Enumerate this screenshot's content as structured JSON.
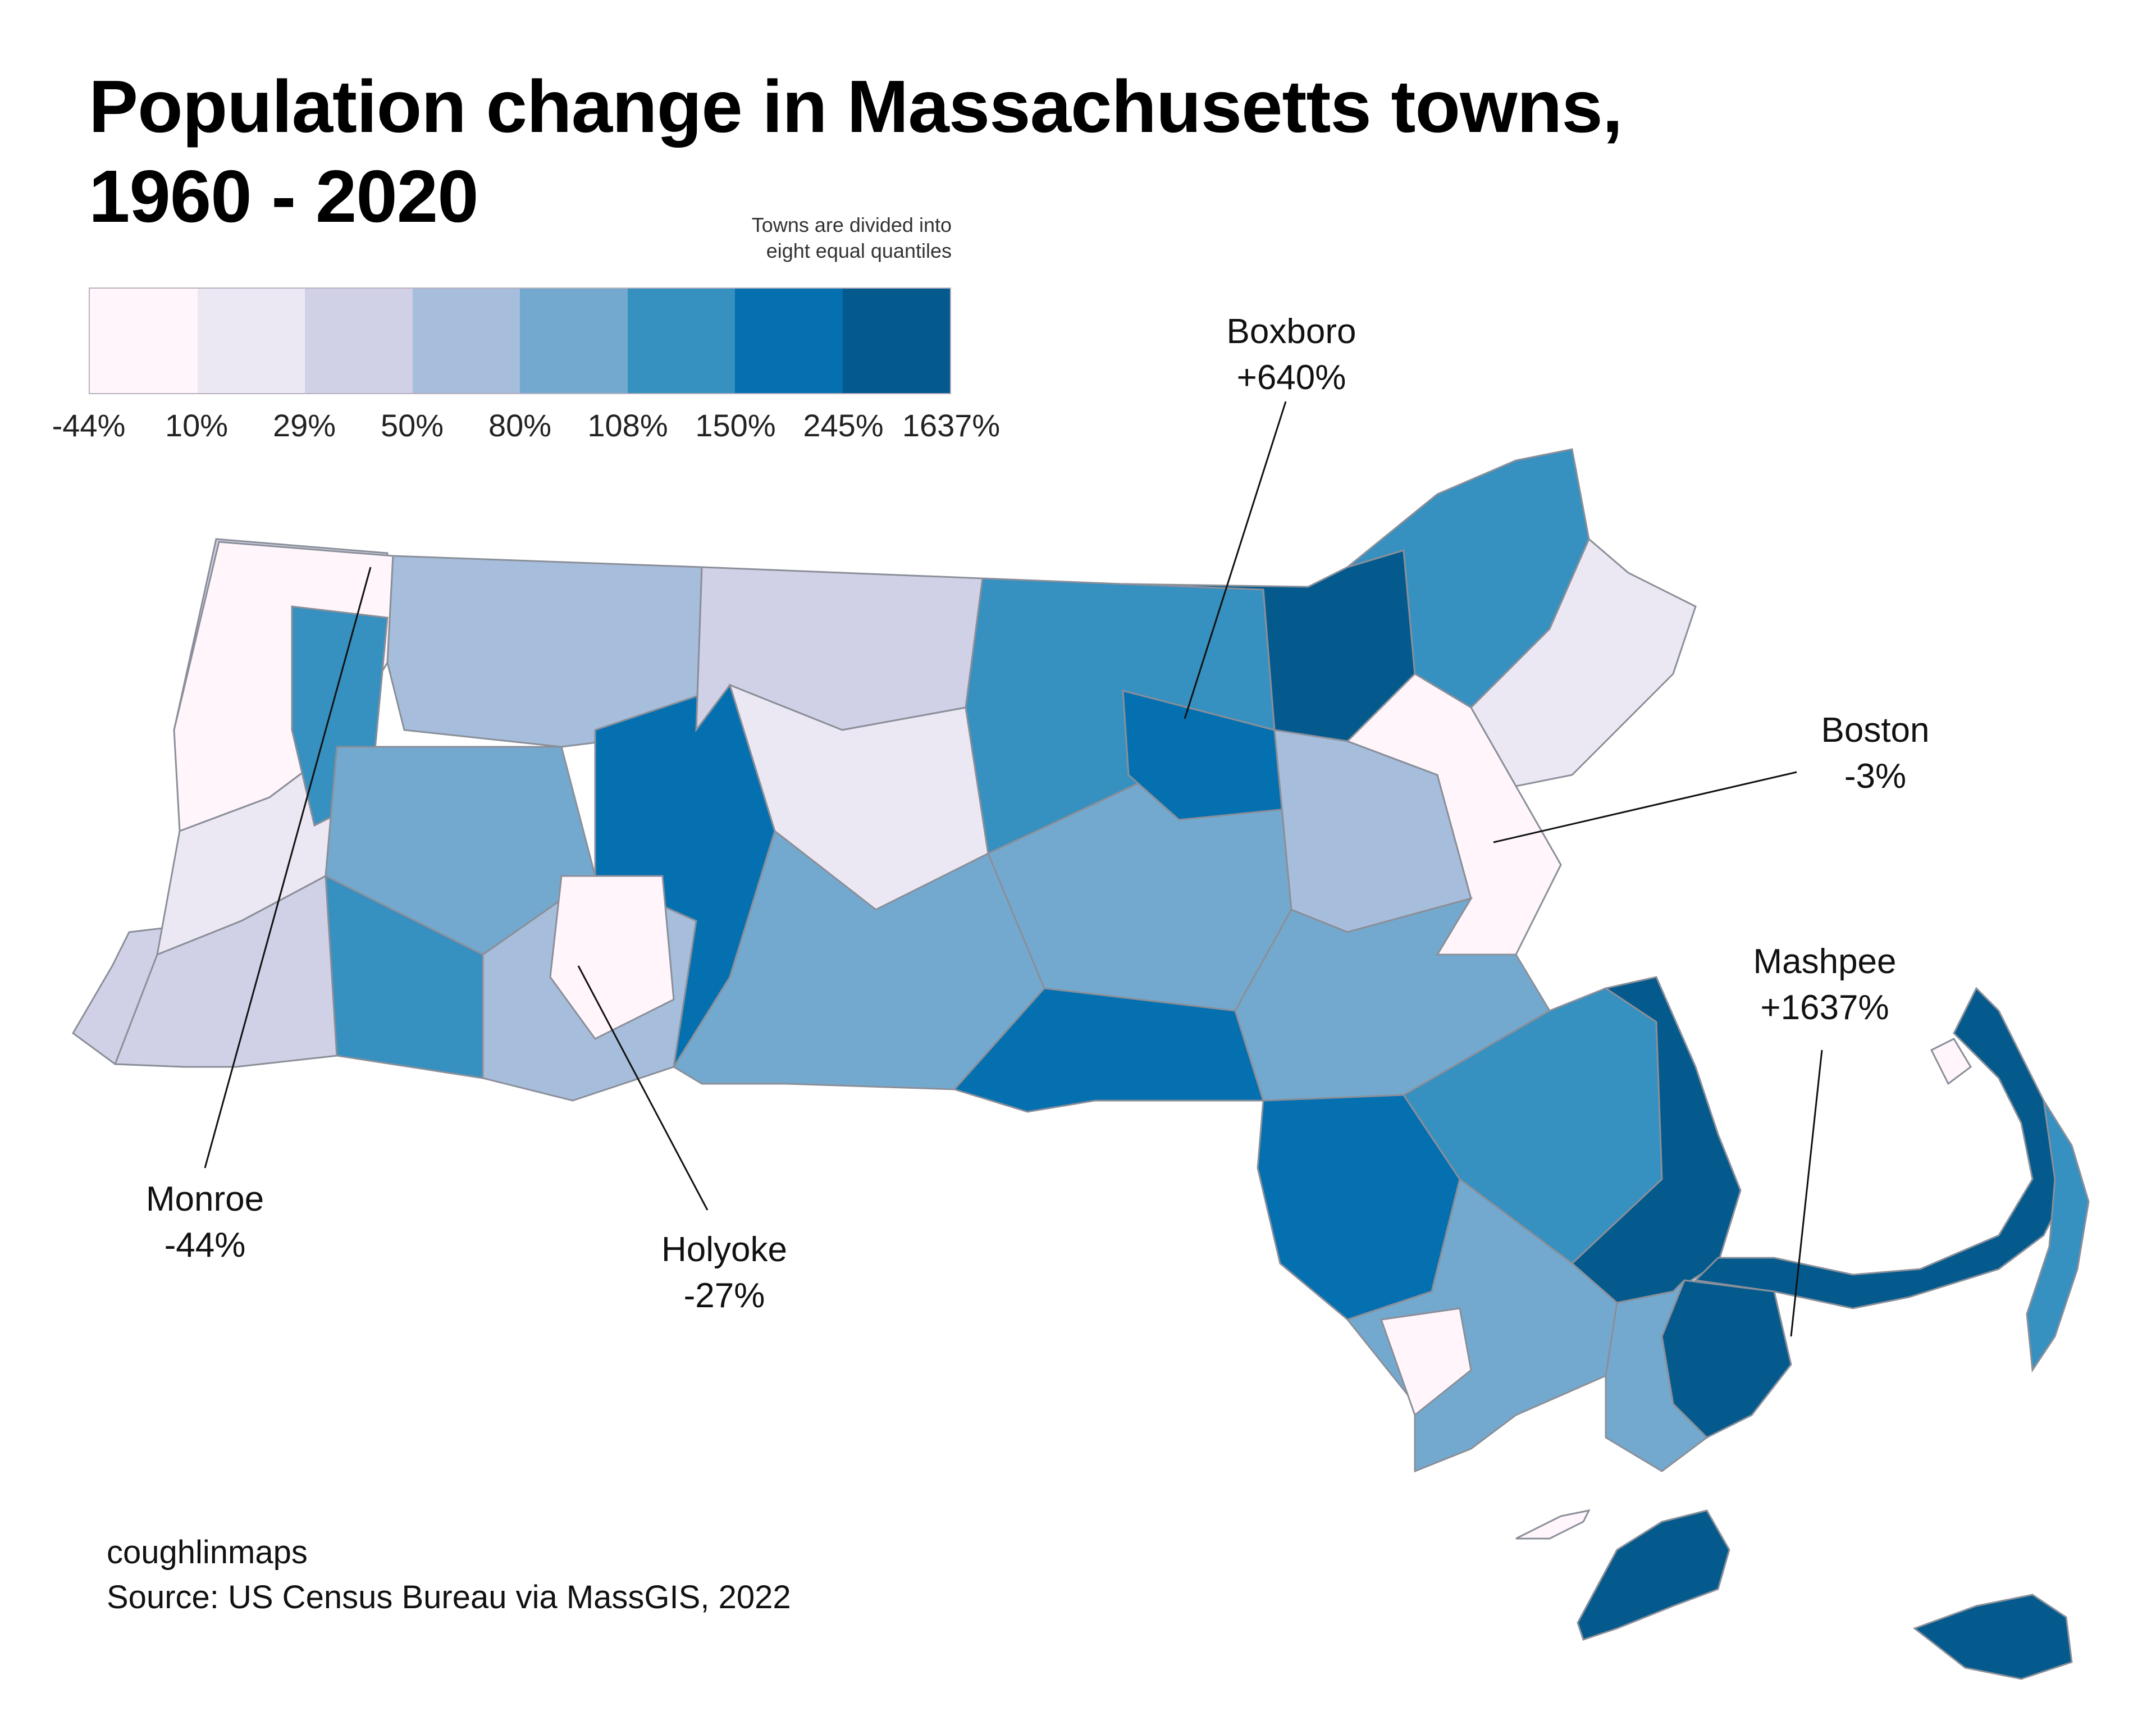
{
  "title_line1": "Population change in Massachusetts towns,",
  "title_line2": "1960 - 2020",
  "legend": {
    "note_line1": "Towns are divided into",
    "note_line2": "eight equal quantiles",
    "colors": [
      "#fff5fb",
      "#ece8f3",
      "#d0d1e6",
      "#a6bddb",
      "#74a9cf",
      "#3690c0",
      "#0570b0",
      "#045a8d"
    ],
    "ticks": [
      "-44%",
      "10%",
      "29%",
      "50%",
      "80%",
      "108%",
      "150%",
      "245%",
      "1637%"
    ]
  },
  "annotations": [
    {
      "name": "Boxboro",
      "value": "+640%"
    },
    {
      "name": "Boston",
      "value": "-3%"
    },
    {
      "name": "Mashpee",
      "value": "+1637%"
    },
    {
      "name": "Monroe",
      "value": "-44%"
    },
    {
      "name": "Holyoke",
      "value": "-27%"
    }
  ],
  "credits": {
    "author": "coughlinmaps",
    "source": "Source: US Census Bureau via MassGIS, 2022"
  }
}
